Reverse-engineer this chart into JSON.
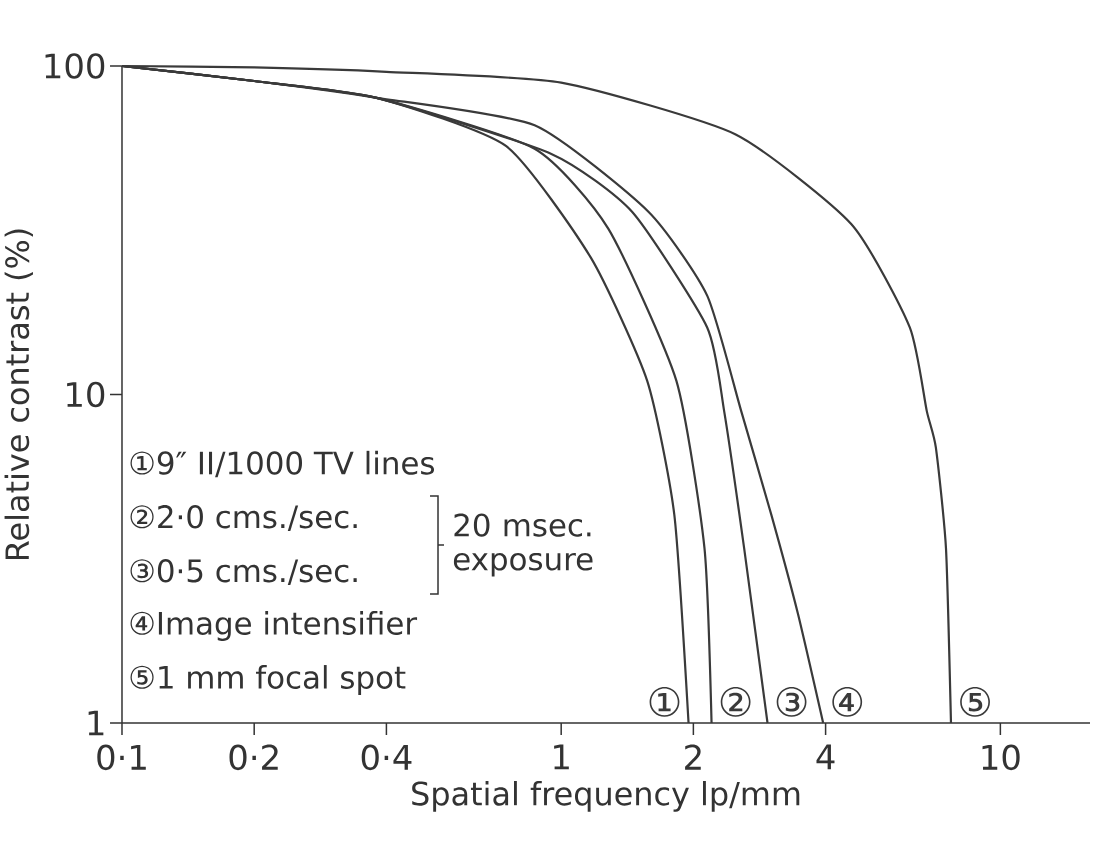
{
  "chart_data": {
    "type": "line",
    "xlabel": "Spatial frequency  lp/mm",
    "ylabel": "Relative contrast (%)",
    "log": "xy",
    "xlim": [
      0.1,
      16
    ],
    "ylim": [
      1,
      100
    ],
    "xticks": [
      {
        "value": 0.1,
        "label": "0·1"
      },
      {
        "value": 0.2,
        "label": "0·2"
      },
      {
        "value": 0.4,
        "label": "0·4"
      },
      1,
      2,
      4,
      10
    ],
    "yticks": [
      1,
      10,
      100
    ],
    "series": [
      {
        "name": "①",
        "color": "#3a3a3a",
        "x": [
          0.1,
          0.2,
          0.38,
          0.75,
          1.17,
          1.57,
          1.81,
          1.95
        ],
        "values": [
          100,
          90,
          80,
          57,
          26,
          11,
          4.3,
          1
        ]
      },
      {
        "name": "②",
        "color": "#3a3a3a",
        "x": [
          0.1,
          0.2,
          0.38,
          0.87,
          1.28,
          1.83,
          2.12,
          2.2
        ],
        "values": [
          100,
          90,
          80,
          56,
          32,
          11,
          3.4,
          1
        ]
      },
      {
        "name": "③",
        "color": "#3a3a3a",
        "x": [
          0.1,
          0.2,
          0.38,
          0.95,
          1.45,
          2.15,
          2.35,
          2.61,
          2.95
        ],
        "values": [
          100,
          90,
          80,
          54,
          36,
          16,
          8.9,
          3.4,
          1
        ]
      },
      {
        "name": "④",
        "color": "#3a3a3a",
        "x": [
          0.1,
          0.2,
          0.38,
          0.87,
          1.58,
          2.15,
          2.57,
          3.01,
          3.46,
          3.95
        ],
        "values": [
          100,
          90,
          80,
          66,
          36,
          20,
          8.9,
          4.3,
          2.15,
          1
        ]
      },
      {
        "name": "⑤",
        "color": "#3a3a3a",
        "x": [
          0.1,
          0.2,
          0.4,
          1.0,
          2.49,
          4.58,
          6.22,
          6.8,
          7.13,
          7.52,
          7.72
        ],
        "values": [
          100,
          99,
          96,
          89,
          62,
          33,
          16,
          8.9,
          6.9,
          3.4,
          1
        ]
      }
    ],
    "annotations": [
      "①9″ II/1000 TV lines",
      "②2·0 cms./sec.",
      "③0·5 cms./sec.",
      "④Image intensifier",
      "⑤1 mm focal spot",
      "20 msec. exposure"
    ]
  }
}
